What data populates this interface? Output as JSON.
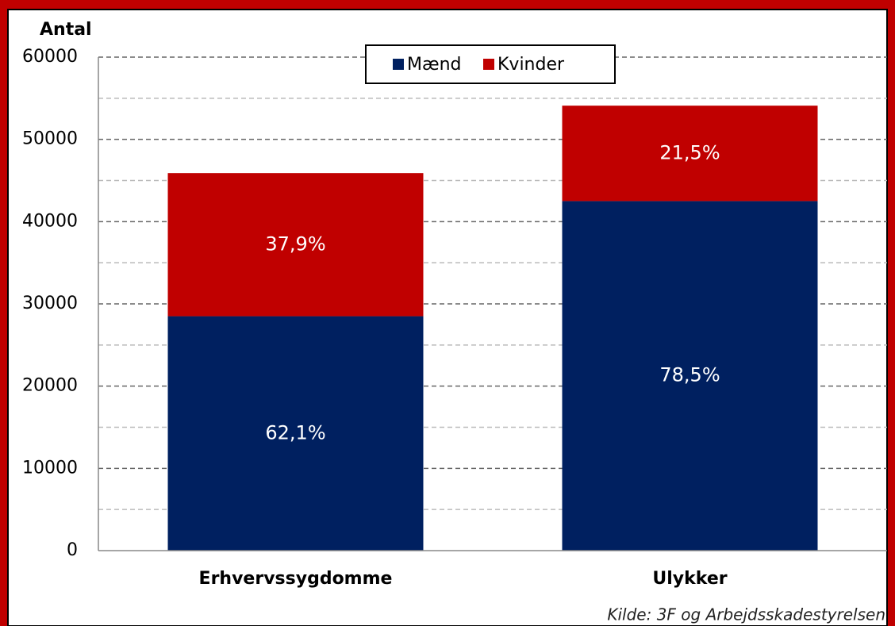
{
  "chart_data": {
    "type": "stacked_bar",
    "y_axis_label": "Antal",
    "categories": [
      "Erhvervssygdomme",
      "Ulykker"
    ],
    "series": [
      {
        "name": "Mænd",
        "color": "#002060",
        "values": [
          28500,
          42500
        ],
        "percent_labels": [
          {
            "value": 62.1,
            "label": "62,1%"
          },
          {
            "value": 78.5,
            "label": "78,5%"
          }
        ]
      },
      {
        "name": "Kvinder",
        "color": "#c00000",
        "values": [
          17400,
          11600
        ],
        "percent_labels": [
          {
            "value": 37.9,
            "label": "37,9%"
          },
          {
            "value": 21.5,
            "label": "21,5%"
          }
        ]
      }
    ],
    "ylim": [
      0,
      60000
    ],
    "yticks": [
      0,
      10000,
      20000,
      30000,
      40000,
      50000,
      60000
    ],
    "minor_yticks": [
      5000,
      15000,
      25000,
      35000,
      45000,
      55000
    ],
    "grid": true,
    "legend": "top",
    "source": "Kilde: 3F og Arbejdsskadestyrelsen"
  }
}
